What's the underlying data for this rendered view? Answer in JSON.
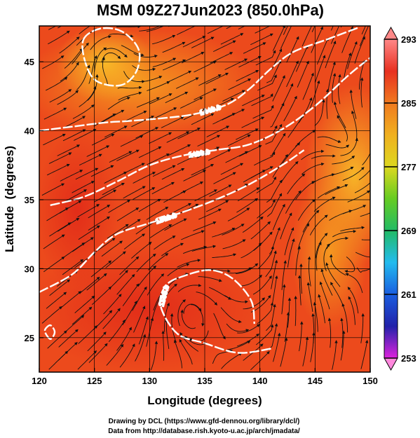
{
  "chart_data": {
    "type": "heatmap",
    "title": "MSM 09Z27Jun2023 (850.0hPa)",
    "xlabel": "Longitude (degrees)",
    "ylabel": "Latitude  (degrees)",
    "xlim": [
      120,
      150
    ],
    "ylim": [
      22.5,
      47.6
    ],
    "x_ticks": [
      120,
      125,
      130,
      135,
      140,
      145,
      150
    ],
    "y_ticks": [
      25,
      30,
      35,
      40,
      45
    ],
    "grid": true,
    "field": "temperature (colour shading) with streamlines and height contours",
    "colorbar": {
      "min": 253,
      "max": 293,
      "ticks": [
        293,
        285,
        277,
        269,
        261,
        253
      ],
      "colors": [
        "#dd22dd",
        "#2222aa",
        "#1a5ee0",
        "#22bbee",
        "#22bb66",
        "#66cc22",
        "#ddd820",
        "#f0b020",
        "#f07a20",
        "#e83020",
        "#ff8888"
      ]
    },
    "contours": [
      {
        "label": "1440.0",
        "points": [
          [
            120,
            40.0
          ],
          [
            123,
            40.3
          ],
          [
            126,
            40.6
          ],
          [
            128,
            40.7
          ],
          [
            131,
            40.9
          ],
          [
            134,
            41.2
          ],
          [
            137,
            41.9
          ],
          [
            139,
            43.0
          ],
          [
            141,
            44.5
          ],
          [
            143,
            45.7
          ],
          [
            146,
            46.6
          ],
          [
            149,
            47.5
          ]
        ]
      },
      {
        "label": "1480.0",
        "points": [
          [
            121,
            34.6
          ],
          [
            124,
            35.2
          ],
          [
            127,
            36.3
          ],
          [
            130,
            37.5
          ],
          [
            133,
            38.2
          ],
          [
            136,
            38.6
          ],
          [
            139,
            39.0
          ],
          [
            142,
            40.1
          ],
          [
            145,
            41.8
          ],
          [
            148,
            44.0
          ],
          [
            150,
            45.3
          ]
        ]
      },
      {
        "label": "1520.0",
        "points": [
          [
            120,
            28.3
          ],
          [
            123,
            29.6
          ],
          [
            125,
            31.2
          ],
          [
            127,
            32.5
          ],
          [
            130,
            33.3
          ],
          [
            133,
            34.1
          ],
          [
            136,
            35.0
          ],
          [
            139,
            36.1
          ],
          [
            142,
            37.5
          ],
          [
            144,
            38.6
          ]
        ]
      },
      {
        "label": "1560.0",
        "points": [
          [
            141,
            24.2
          ],
          [
            138,
            23.9
          ],
          [
            135,
            24.6
          ],
          [
            132.5,
            25.3
          ],
          [
            131,
            27.3
          ],
          [
            131.5,
            28.8
          ],
          [
            133.2,
            29.5
          ],
          [
            135.5,
            29.9
          ],
          [
            137.5,
            29.3
          ],
          [
            139.2,
            27.7
          ],
          [
            139.5,
            26.0
          ]
        ]
      }
    ],
    "closed_contours": [
      {
        "points": [
          [
            124,
            46.6
          ],
          [
            125.5,
            47.4
          ],
          [
            127.5,
            47.2
          ],
          [
            129,
            45.9
          ],
          [
            128.8,
            44.3
          ],
          [
            127.4,
            43.3
          ],
          [
            125.2,
            43.6
          ],
          [
            124.2,
            44.9
          ]
        ]
      },
      {
        "points": [
          [
            120.5,
            25.5
          ],
          [
            121,
            25.9
          ],
          [
            121.4,
            25.4
          ],
          [
            121,
            24.9
          ]
        ]
      }
    ],
    "credits": [
      "Drawing by DCL (https://www.gfd-dennou.org/library/dcl/)",
      "Data from http://database.rish.kyoto-u.ac.jp/arch/jmadata/"
    ]
  }
}
